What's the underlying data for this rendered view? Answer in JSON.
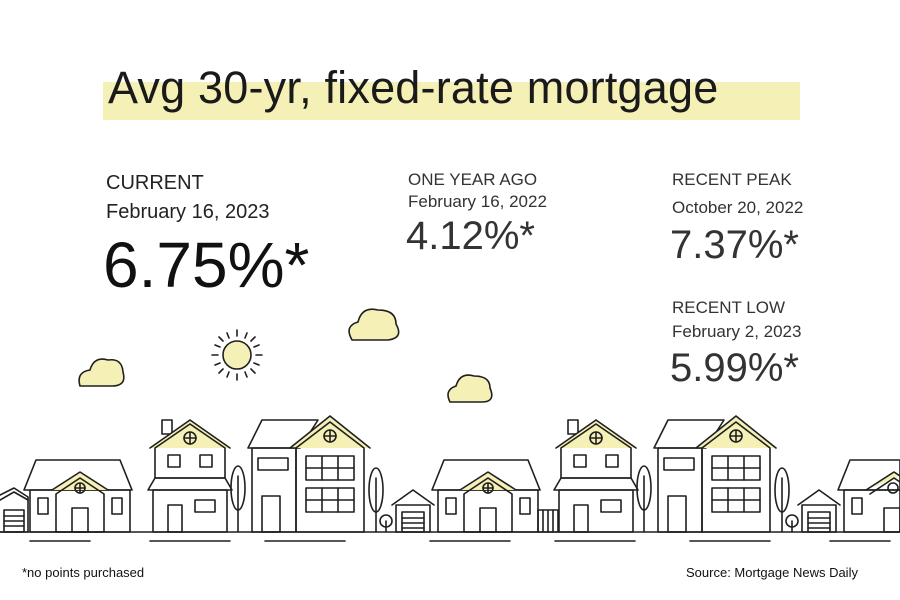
{
  "title": "Avg 30-yr, fixed-rate mortgage",
  "current": {
    "label": "CURRENT",
    "date": "February 16, 2023",
    "rate": "6.75%*"
  },
  "one_year_ago": {
    "label": "ONE YEAR AGO",
    "date": "February 16, 2022",
    "rate": "4.12%*"
  },
  "recent_peak": {
    "label": "RECENT PEAK",
    "date": "October 20, 2022",
    "rate": "7.37%*"
  },
  "recent_low": {
    "label": "RECENT LOW",
    "date": "February 2, 2023",
    "rate": "5.99%*"
  },
  "footnote": "*no points purchased",
  "source": "Source: Mortgage News Daily",
  "colors": {
    "highlight": "#f4f0b6",
    "cloud_fill": "#f4f0b6",
    "line": "#1f1f1f"
  }
}
